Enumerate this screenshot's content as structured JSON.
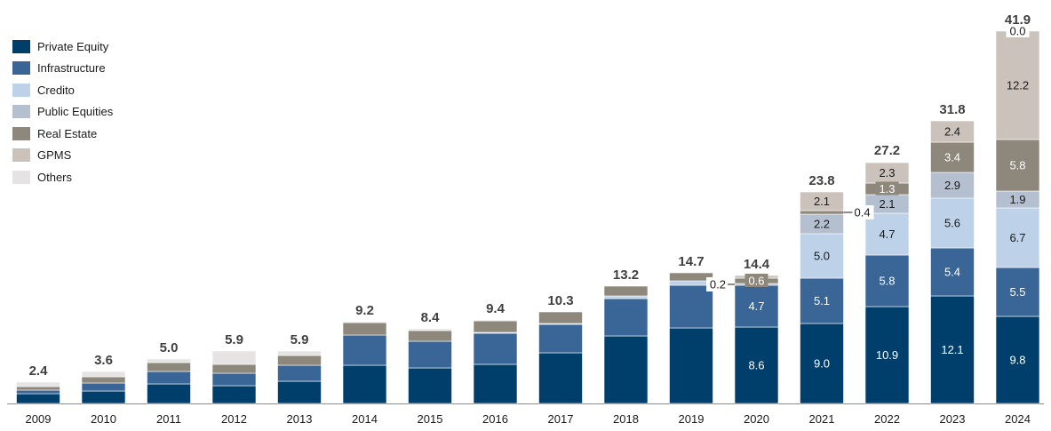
{
  "chart_data": {
    "type": "bar",
    "stacked": true,
    "title": "",
    "xlabel": "",
    "ylabel": "",
    "ylim": [
      0,
      42
    ],
    "grid": false,
    "legend_position": "top-left",
    "categories": [
      "2009",
      "2010",
      "2011",
      "2012",
      "2013",
      "2014",
      "2015",
      "2016",
      "2017",
      "2018",
      "2019",
      "2020",
      "2021",
      "2022",
      "2023",
      "2024"
    ],
    "totals": [
      2.4,
      3.6,
      5.0,
      5.9,
      5.9,
      9.2,
      8.4,
      9.4,
      10.3,
      13.2,
      14.7,
      14.4,
      23.8,
      27.2,
      31.8,
      41.9
    ],
    "total_labels": [
      "2.4",
      "3.6",
      "5.0",
      "5.9",
      "5.9",
      "9.2",
      "8.4",
      "9.4",
      "10.3",
      "13.2",
      "14.7",
      "14.4",
      "23.8",
      "27.2",
      "31.8",
      "41.9"
    ],
    "series": [
      {
        "name": "Private Equity",
        "color": "#003f6b",
        "values": [
          1.1,
          1.4,
          2.2,
          2.0,
          2.5,
          4.3,
          4.0,
          4.4,
          5.7,
          7.6,
          8.5,
          8.6,
          9.0,
          10.9,
          12.1,
          9.8
        ],
        "labels": [
          null,
          null,
          null,
          null,
          null,
          null,
          null,
          null,
          null,
          null,
          null,
          "8.6",
          "9.0",
          "10.9",
          "12.1",
          "9.8"
        ]
      },
      {
        "name": "Infrastructure",
        "color": "#3a6597",
        "values": [
          0.4,
          0.9,
          1.4,
          1.4,
          1.8,
          3.4,
          3.0,
          3.5,
          3.2,
          4.2,
          4.8,
          4.7,
          5.1,
          5.8,
          5.4,
          5.5
        ],
        "labels": [
          null,
          null,
          null,
          null,
          null,
          null,
          null,
          null,
          null,
          null,
          null,
          "4.7",
          "5.1",
          "5.8",
          "5.4",
          "5.5"
        ]
      },
      {
        "name": "Credito",
        "color": "#bdd1e8",
        "values": [
          0,
          0,
          0,
          0,
          0,
          0,
          0,
          0.1,
          0.1,
          0.3,
          0.5,
          0,
          5.0,
          4.7,
          5.6,
          6.7
        ],
        "labels": [
          null,
          null,
          null,
          null,
          null,
          null,
          null,
          null,
          null,
          null,
          null,
          null,
          "5.0",
          "4.7",
          "5.6",
          "6.7"
        ]
      },
      {
        "name": "Public Equities",
        "color": "#b4c0d0",
        "values": [
          0,
          0,
          0,
          0,
          0,
          0,
          0,
          0,
          0,
          0,
          0,
          0.2,
          2.2,
          2.1,
          2.9,
          1.9
        ],
        "labels": [
          null,
          null,
          null,
          null,
          null,
          null,
          null,
          null,
          null,
          null,
          null,
          "0.2",
          "2.2",
          "2.1",
          "2.9",
          "1.9"
        ]
      },
      {
        "name": "Real Estate",
        "color": "#8e877b",
        "values": [
          0.4,
          0.7,
          1.0,
          1.0,
          1.1,
          1.4,
          1.2,
          1.3,
          1.3,
          1.1,
          0.9,
          0.6,
          0.4,
          1.3,
          3.4,
          5.8
        ],
        "labels": [
          null,
          null,
          null,
          null,
          null,
          null,
          null,
          null,
          null,
          null,
          null,
          "0.6",
          "0.4",
          "1.3",
          "3.4",
          "5.8"
        ]
      },
      {
        "name": "GPMS",
        "color": "#cbc3bb",
        "values": [
          0,
          0,
          0,
          0,
          0,
          0,
          0,
          0,
          0,
          0,
          0,
          0.3,
          2.1,
          2.3,
          2.4,
          12.2
        ],
        "labels": [
          null,
          null,
          null,
          null,
          null,
          null,
          null,
          null,
          null,
          null,
          null,
          null,
          "2.1",
          "2.3",
          "2.4",
          "12.2"
        ]
      },
      {
        "name": "Others",
        "color": "#e5e3e3",
        "values": [
          0.5,
          0.6,
          0.4,
          1.5,
          0.5,
          0.1,
          0.2,
          0.1,
          0,
          0,
          0,
          0,
          0,
          0,
          0,
          0.0
        ],
        "labels": [
          null,
          null,
          null,
          null,
          null,
          null,
          null,
          null,
          null,
          null,
          null,
          null,
          null,
          null,
          null,
          "0.0"
        ]
      }
    ],
    "callouts": [
      {
        "category": "2020",
        "series": "Public Equities",
        "label": "0.2",
        "side": "left"
      },
      {
        "category": "2021",
        "series": "Real Estate",
        "label": "0.4",
        "side": "right"
      }
    ]
  }
}
